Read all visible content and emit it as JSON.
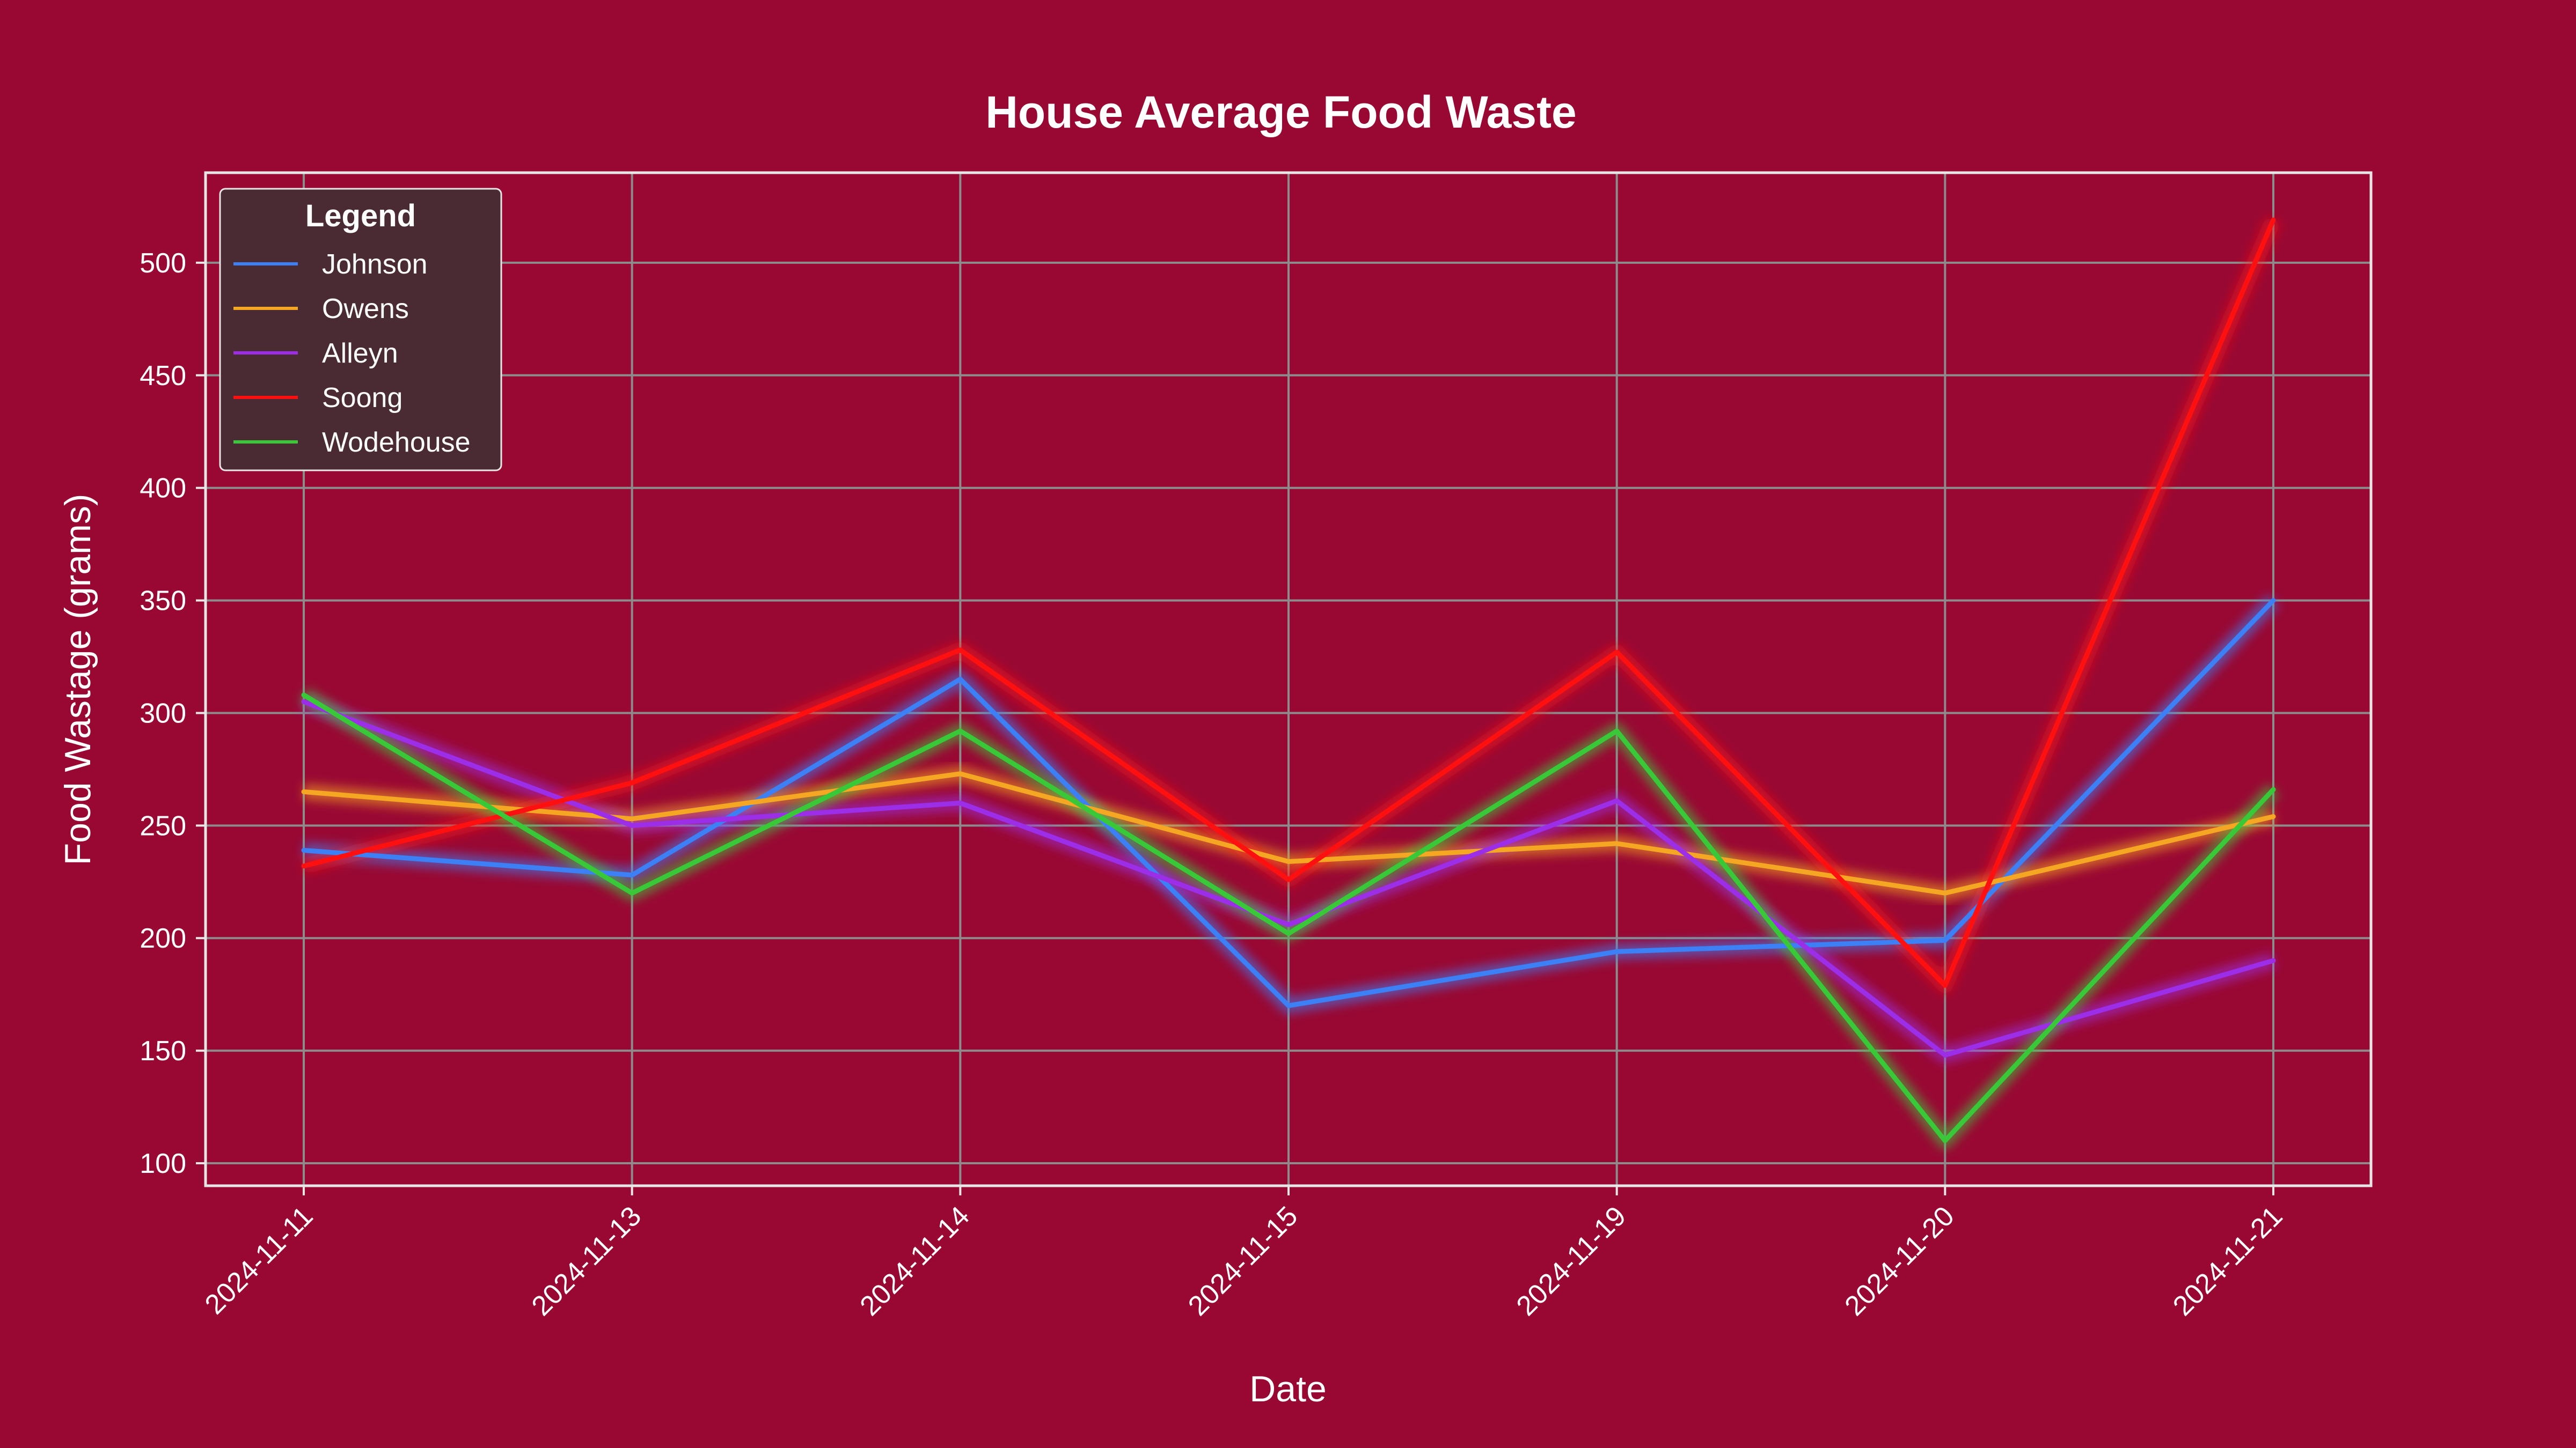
{
  "chart_data": {
    "type": "line",
    "title": "House Average Food Waste",
    "xlabel": "Date",
    "ylabel": "Food Wastage (grams)",
    "categories": [
      "2024-11-11",
      "2024-11-13",
      "2024-11-14",
      "2024-11-15",
      "2024-11-19",
      "2024-11-20",
      "2024-11-21"
    ],
    "ylim": [
      90,
      540
    ],
    "yticks": [
      100,
      150,
      200,
      250,
      300,
      350,
      400,
      450,
      500
    ],
    "grid": true,
    "legend": {
      "title": "Legend",
      "placement": "top-left"
    },
    "series": [
      {
        "name": "Johnson",
        "color": "#3d7ff5",
        "values": [
          239,
          228,
          315,
          170,
          194,
          199,
          350
        ]
      },
      {
        "name": "Owens",
        "color": "#f5a623",
        "values": [
          265,
          253,
          273,
          234,
          242,
          220,
          254
        ]
      },
      {
        "name": "Alleyn",
        "color": "#9d2ee8",
        "values": [
          305,
          250,
          260,
          206,
          261,
          148,
          190
        ]
      },
      {
        "name": "Soong",
        "color": "#ff1010",
        "values": [
          232,
          269,
          328,
          226,
          327,
          179,
          519
        ]
      },
      {
        "name": "Wodehouse",
        "color": "#38c838",
        "values": [
          308,
          220,
          292,
          202,
          292,
          110,
          266
        ]
      }
    ]
  },
  "colors": {
    "background": "#990833",
    "plot_border": "#e6e6e6",
    "grid": "#8c8c8c",
    "legend_bg": "#4a2b33"
  }
}
